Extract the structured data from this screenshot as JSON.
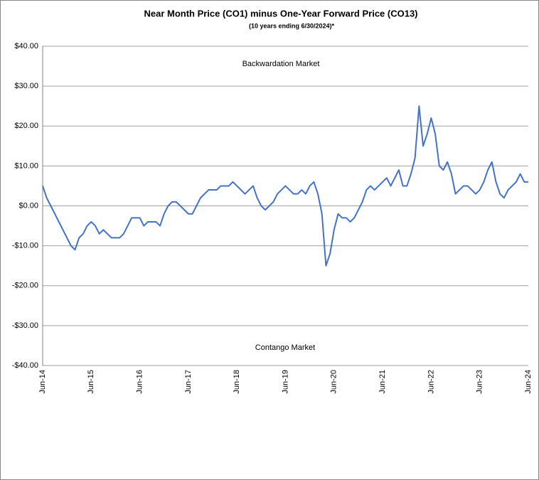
{
  "chart_data": {
    "type": "line",
    "title": "Near Month Price (CO1) minus One-Year Forward Price (CO13)",
    "subtitle": "(10 years ending  6/30/2024)*",
    "annotations": [
      "Backwardation Market",
      "Contango Market"
    ],
    "categories": [
      "Jun-14",
      null,
      null,
      null,
      null,
      null,
      null,
      null,
      null,
      null,
      null,
      null,
      "Jun-15",
      null,
      null,
      null,
      null,
      null,
      null,
      null,
      null,
      null,
      null,
      null,
      "Jun-16",
      null,
      null,
      null,
      null,
      null,
      null,
      null,
      null,
      null,
      null,
      null,
      "Jun-17",
      null,
      null,
      null,
      null,
      null,
      null,
      null,
      null,
      null,
      null,
      null,
      "Jun-18",
      null,
      null,
      null,
      null,
      null,
      null,
      null,
      null,
      null,
      null,
      null,
      "Jun-19",
      null,
      null,
      null,
      null,
      null,
      null,
      null,
      null,
      null,
      null,
      null,
      "Jun-20",
      null,
      null,
      null,
      null,
      null,
      null,
      null,
      null,
      null,
      null,
      null,
      "Jun-21",
      null,
      null,
      null,
      null,
      null,
      null,
      null,
      null,
      null,
      null,
      null,
      "Jun-22",
      null,
      null,
      null,
      null,
      null,
      null,
      null,
      null,
      null,
      null,
      null,
      "Jun-23",
      null,
      null,
      null,
      null,
      null,
      null,
      null,
      null,
      null,
      null,
      null,
      "Jun-24"
    ],
    "series": [
      {
        "color": "#4472c4",
        "values": [
          5,
          2,
          0,
          -2,
          -4,
          -6,
          -8,
          -10,
          -11,
          -8,
          -7,
          -5,
          -4,
          -5,
          -7,
          -6,
          -7,
          -8,
          -8,
          -8,
          -7,
          -5,
          -3,
          -3,
          -3,
          -5,
          -4,
          -4,
          -4,
          -5,
          -2,
          0,
          1,
          1,
          0,
          -1,
          -2,
          -2,
          0,
          2,
          3,
          4,
          4,
          4,
          5,
          5,
          5,
          6,
          5,
          4,
          3,
          4,
          5,
          2,
          0,
          -1,
          0,
          1,
          3,
          4,
          5,
          4,
          3,
          3,
          4,
          3,
          5,
          6,
          3,
          -2,
          -15,
          -12,
          -6,
          -2,
          -3,
          -3,
          -4,
          -3,
          -1,
          1,
          4,
          5,
          4,
          5,
          6,
          7,
          5,
          7,
          9,
          5,
          5,
          8,
          12,
          25,
          15,
          18,
          22,
          18,
          10,
          9,
          11,
          8,
          3,
          4,
          5,
          5,
          4,
          3,
          4,
          6,
          9,
          11,
          6,
          3,
          2,
          4,
          5,
          6,
          8,
          6,
          6
        ]
      }
    ],
    "ylim": [
      -40,
      40
    ],
    "yticks": [
      {
        "value": -40,
        "label": "-$40.00"
      },
      {
        "value": -30,
        "label": "-$30.00"
      },
      {
        "value": -20,
        "label": "-$20.00"
      },
      {
        "value": -10,
        "label": "-$10.00"
      },
      {
        "value": 0,
        "label": "$0.00"
      },
      {
        "value": 10,
        "label": "$10.00"
      },
      {
        "value": 20,
        "label": "$20.00"
      },
      {
        "value": 30,
        "label": "$30.00"
      },
      {
        "value": 40,
        "label": "$40.00"
      }
    ],
    "grid": true
  }
}
